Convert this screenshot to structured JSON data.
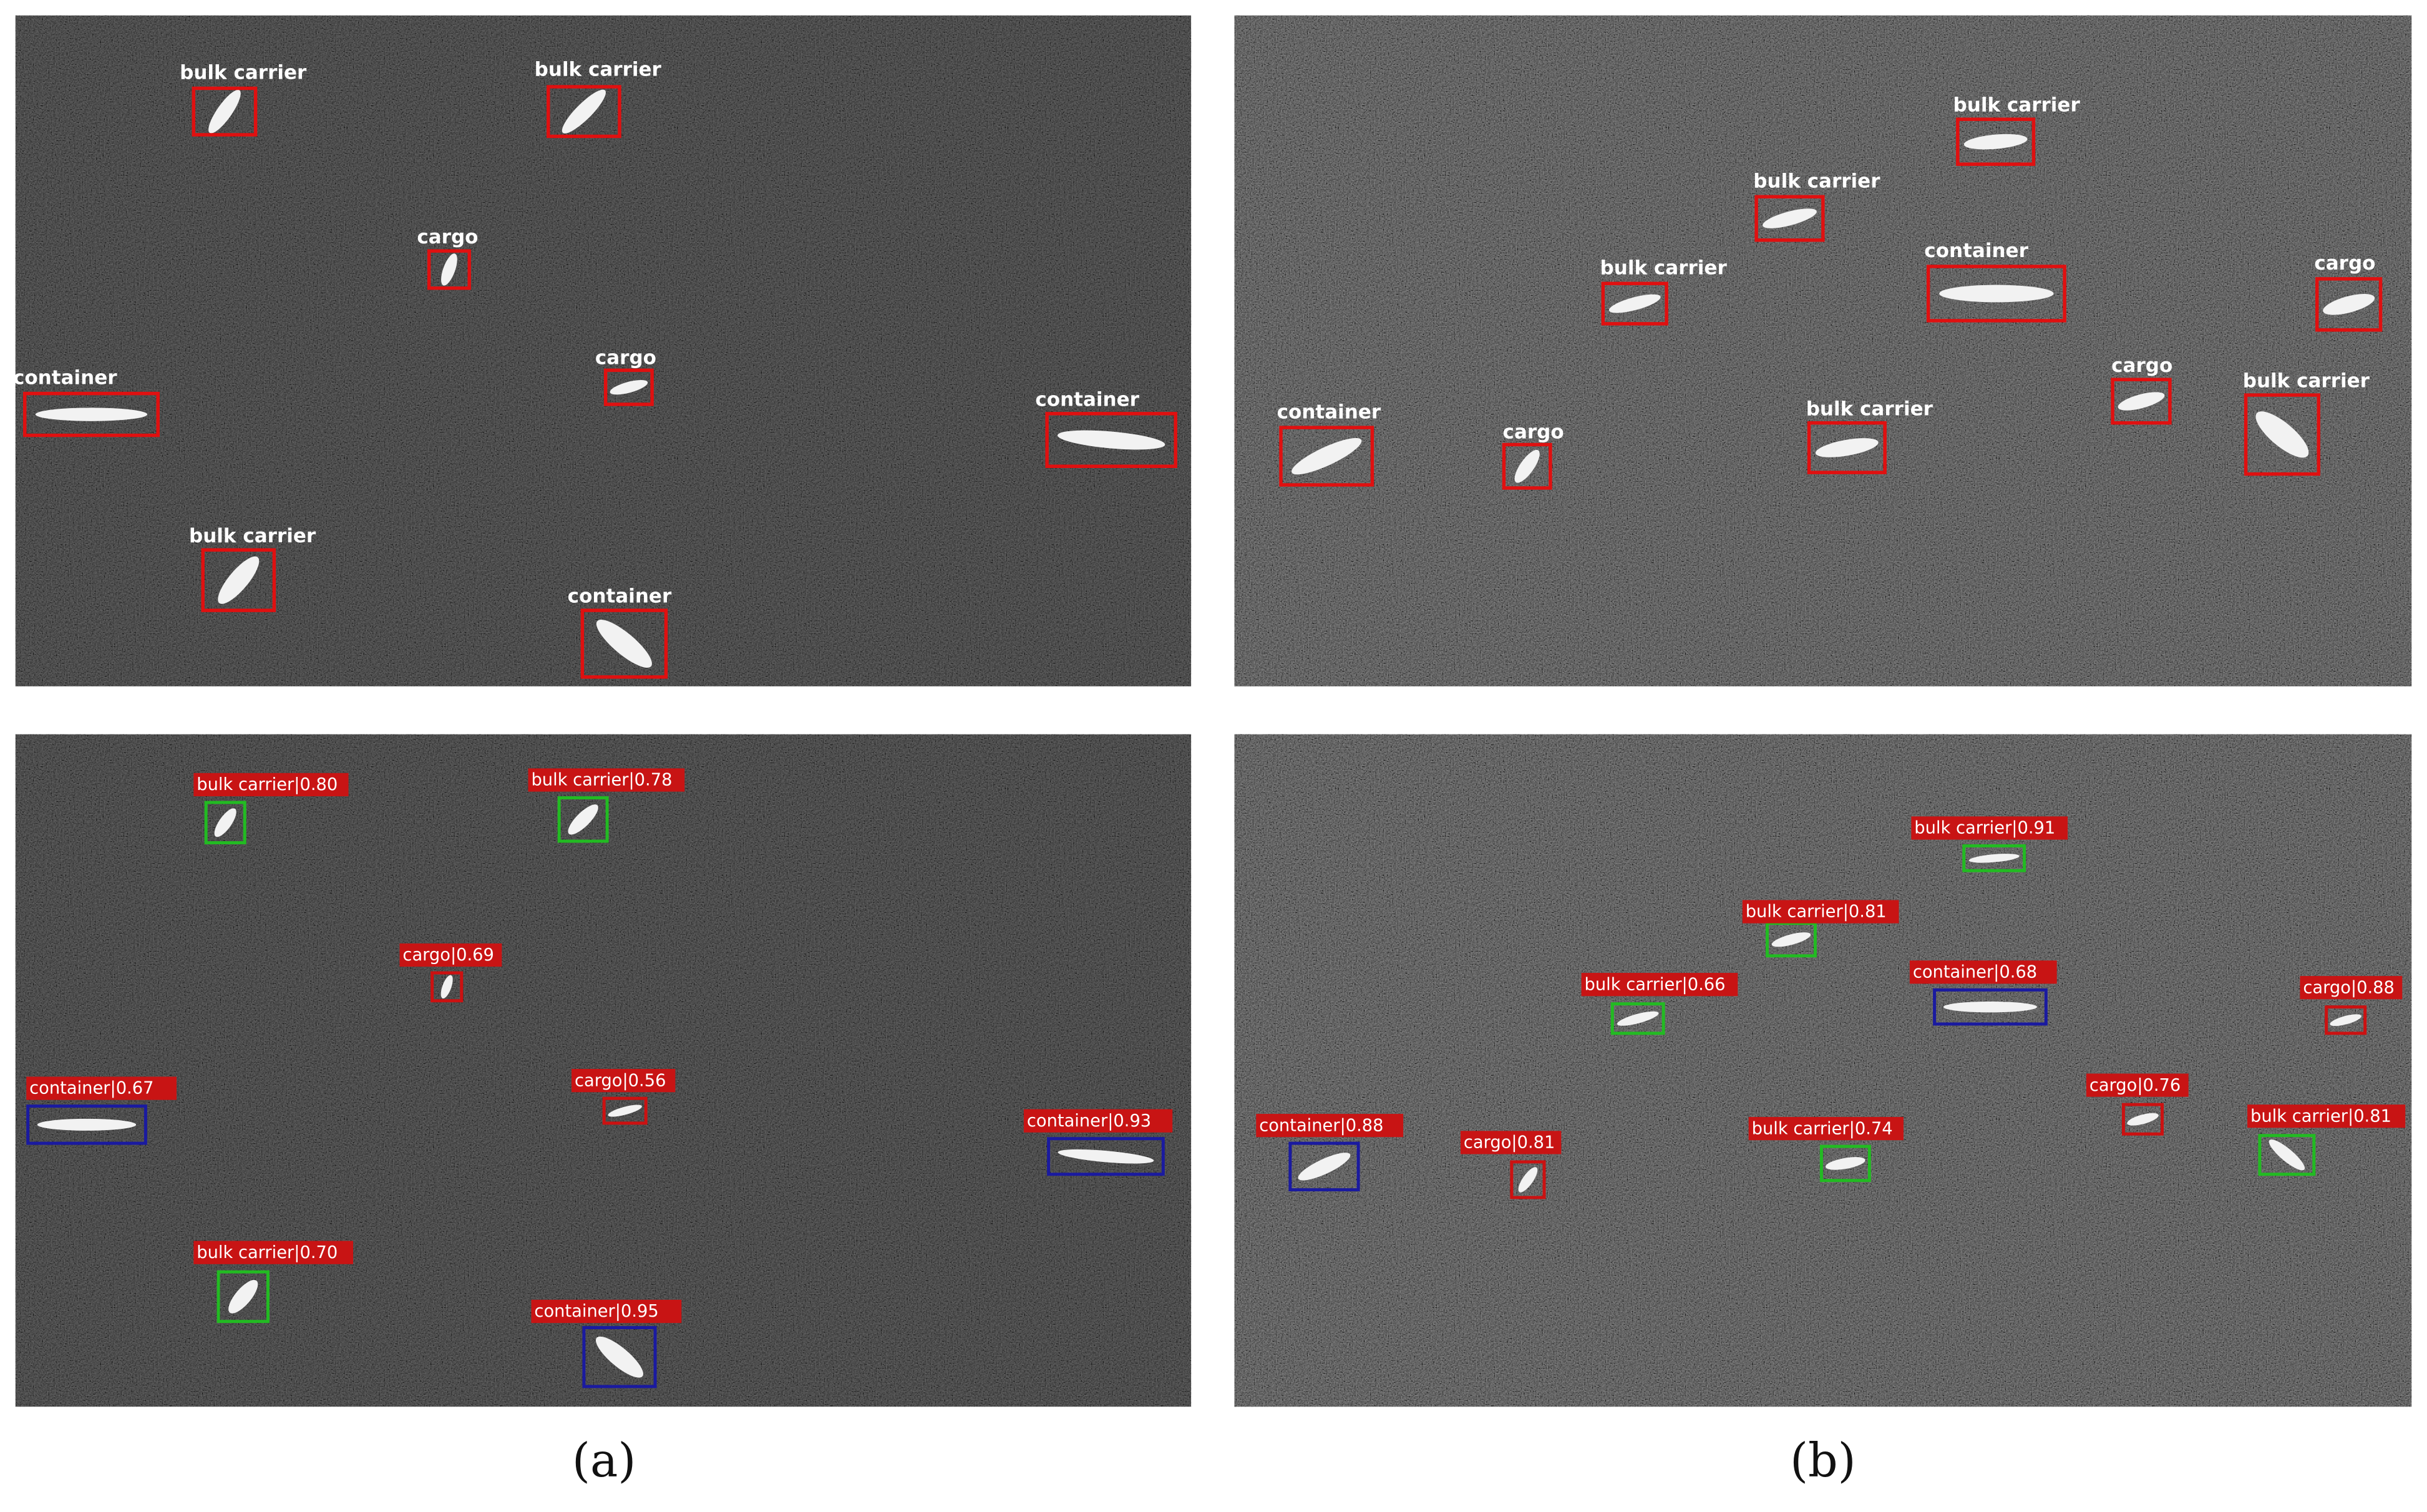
{
  "panels": [
    {
      "caption": "(a)",
      "ground_truth": [
        "bulk carrier",
        "bulk carrier",
        "cargo",
        "cargo",
        "container",
        "container",
        "bulk carrier",
        "container"
      ],
      "predictions": [
        "bulk carrier|0.80",
        "bulk carrier|0.78",
        "cargo|0.69",
        "cargo|0.56",
        "container|0.67",
        "container|0.93",
        "bulk carrier|0.70",
        "container|0.95"
      ]
    },
    {
      "caption": "(b)",
      "ground_truth": [
        "bulk carrier",
        "bulk carrier",
        "container",
        "bulk carrier",
        "cargo",
        "container",
        "cargo",
        "bulk carrier",
        "cargo",
        "bulk carrier"
      ],
      "predictions": [
        "bulk carrier|0.91",
        "bulk carrier|0.81",
        "bulk carrier|0.66",
        "container|0.68",
        "cargo|0.88",
        "cargo|0.76",
        "container|0.88",
        "cargo|0.81",
        "bulk carrier|0.74",
        "bulk carrier|0.81"
      ]
    }
  ]
}
